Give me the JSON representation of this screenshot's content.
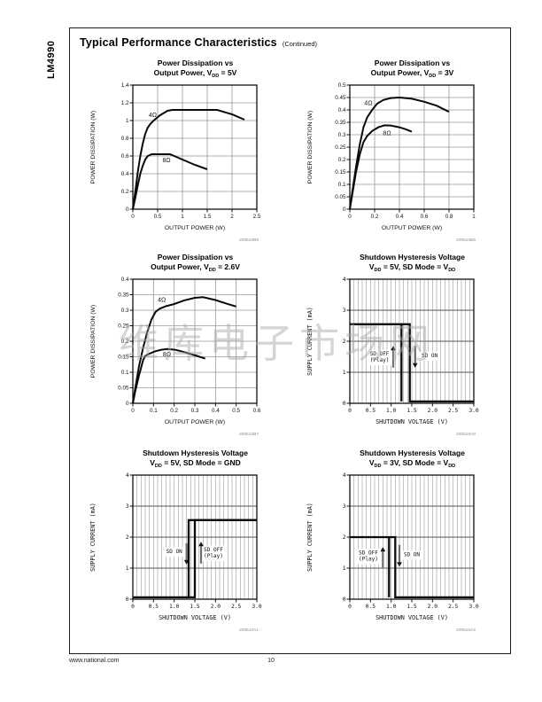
{
  "page": {
    "part_number": "LM4990",
    "header_title": "Typical Performance Characteristics",
    "header_continued": "(Continued)",
    "footer_left": "www.national.com",
    "footer_page": "10",
    "watermark": "维库电子市场网"
  },
  "chart_data": [
    {
      "id": "pd-vdd-5v",
      "type": "line",
      "title_lines": [
        [
          {
            "t": "Power Dissipation vs"
          }
        ],
        [
          {
            "t": "Output Power, V"
          },
          {
            "t": "DD",
            "sub": true
          },
          {
            "t": " = 5V"
          }
        ]
      ],
      "xlabel": "OUTPUT POWER (W)",
      "ylabel": "POWER DISSIPATION (W)",
      "code": "200510B5",
      "mono": false,
      "xlim": [
        0,
        2.5
      ],
      "ylim": [
        0,
        1.4
      ],
      "x_ticks": [
        {
          "v": 0,
          "l": "0"
        },
        {
          "v": 0.5,
          "l": "0.5"
        },
        {
          "v": 1,
          "l": "1"
        },
        {
          "v": 1.5,
          "l": "1.5"
        },
        {
          "v": 2,
          "l": "2"
        },
        {
          "v": 2.5,
          "l": "2.5"
        }
      ],
      "y_ticks": [
        {
          "v": 0,
          "l": "0"
        },
        {
          "v": 0.2,
          "l": "0.2"
        },
        {
          "v": 0.4,
          "l": "0.4"
        },
        {
          "v": 0.6,
          "l": "0.6"
        },
        {
          "v": 0.8,
          "l": "0.8"
        },
        {
          "v": 1,
          "l": "1"
        },
        {
          "v": 1.2,
          "l": "1.2"
        },
        {
          "v": 1.4,
          "l": "1.4"
        }
      ],
      "x_minor": null,
      "series": [
        {
          "name": "4Ω",
          "label_x": 0.4,
          "label_y": 1.04,
          "points": [
            [
              0,
              0
            ],
            [
              0.05,
              0.2
            ],
            [
              0.1,
              0.42
            ],
            [
              0.15,
              0.6
            ],
            [
              0.2,
              0.74
            ],
            [
              0.25,
              0.85
            ],
            [
              0.3,
              0.92
            ],
            [
              0.35,
              0.96
            ],
            [
              0.42,
              1.0
            ],
            [
              0.55,
              1.06
            ],
            [
              0.7,
              1.11
            ],
            [
              0.8,
              1.12
            ],
            [
              1.7,
              1.12
            ],
            [
              2.0,
              1.07
            ],
            [
              2.25,
              1.01
            ]
          ]
        },
        {
          "name": "8Ω",
          "label_x": 0.68,
          "label_y": 0.53,
          "points": [
            [
              0,
              0
            ],
            [
              0.05,
              0.13
            ],
            [
              0.1,
              0.27
            ],
            [
              0.15,
              0.4
            ],
            [
              0.2,
              0.49
            ],
            [
              0.25,
              0.56
            ],
            [
              0.3,
              0.6
            ],
            [
              0.38,
              0.62
            ],
            [
              0.75,
              0.62
            ],
            [
              1.0,
              0.56
            ],
            [
              1.25,
              0.5
            ],
            [
              1.5,
              0.45
            ]
          ]
        }
      ],
      "annotations": [],
      "arrows": []
    },
    {
      "id": "pd-vdd-3v",
      "type": "line",
      "title_lines": [
        [
          {
            "t": "Power Dissipation vs"
          }
        ],
        [
          {
            "t": "Output Power, V"
          },
          {
            "t": "DD",
            "sub": true
          },
          {
            "t": " = 3V"
          }
        ]
      ],
      "xlabel": "OUTPUT POWER (W)",
      "ylabel": "POWER DISSIPATION (W)",
      "code": "200510B6",
      "mono": false,
      "xlim": [
        0,
        1
      ],
      "ylim": [
        0,
        0.5
      ],
      "x_ticks": [
        {
          "v": 0,
          "l": "0"
        },
        {
          "v": 0.2,
          "l": "0.2"
        },
        {
          "v": 0.4,
          "l": "0.4"
        },
        {
          "v": 0.6,
          "l": "0.6"
        },
        {
          "v": 0.8,
          "l": "0.8"
        },
        {
          "v": 1,
          "l": "1"
        }
      ],
      "y_ticks": [
        {
          "v": 0,
          "l": "0"
        },
        {
          "v": 0.05,
          "l": "0.05"
        },
        {
          "v": 0.1,
          "l": "0.1"
        },
        {
          "v": 0.15,
          "l": "0.15"
        },
        {
          "v": 0.2,
          "l": "0.2"
        },
        {
          "v": 0.25,
          "l": "0.25"
        },
        {
          "v": 0.3,
          "l": "0.3"
        },
        {
          "v": 0.35,
          "l": "0.35"
        },
        {
          "v": 0.4,
          "l": "0.4"
        },
        {
          "v": 0.45,
          "l": "0.45"
        },
        {
          "v": 0.5,
          "l": "0.5"
        }
      ],
      "x_minor": null,
      "series": [
        {
          "name": "4Ω",
          "label_x": 0.15,
          "label_y": 0.42,
          "points": [
            [
              0,
              0
            ],
            [
              0.02,
              0.07
            ],
            [
              0.05,
              0.17
            ],
            [
              0.08,
              0.26
            ],
            [
              0.11,
              0.33
            ],
            [
              0.14,
              0.37
            ],
            [
              0.18,
              0.4
            ],
            [
              0.22,
              0.425
            ],
            [
              0.27,
              0.44
            ],
            [
              0.33,
              0.448
            ],
            [
              0.4,
              0.45
            ],
            [
              0.5,
              0.445
            ],
            [
              0.6,
              0.433
            ],
            [
              0.7,
              0.417
            ],
            [
              0.8,
              0.392
            ]
          ]
        },
        {
          "name": "8Ω",
          "label_x": 0.3,
          "label_y": 0.298,
          "points": [
            [
              0,
              0
            ],
            [
              0.02,
              0.06
            ],
            [
              0.05,
              0.15
            ],
            [
              0.08,
              0.22
            ],
            [
              0.11,
              0.27
            ],
            [
              0.14,
              0.295
            ],
            [
              0.18,
              0.315
            ],
            [
              0.23,
              0.33
            ],
            [
              0.28,
              0.338
            ],
            [
              0.33,
              0.337
            ],
            [
              0.4,
              0.33
            ],
            [
              0.45,
              0.322
            ],
            [
              0.5,
              0.312
            ]
          ]
        }
      ],
      "annotations": [],
      "arrows": []
    },
    {
      "id": "pd-vdd-2p6v",
      "type": "line",
      "title_lines": [
        [
          {
            "t": "Power Dissipation vs"
          }
        ],
        [
          {
            "t": "Output Power, V"
          },
          {
            "t": "DD",
            "sub": true
          },
          {
            "t": " = 2.6V"
          }
        ]
      ],
      "xlabel": "OUTPUT POWER (W)",
      "ylabel": "POWER DISSIPATION (W)",
      "code": "200510B7",
      "mono": false,
      "xlim": [
        0,
        0.6
      ],
      "ylim": [
        0,
        0.4
      ],
      "x_ticks": [
        {
          "v": 0,
          "l": "0"
        },
        {
          "v": 0.1,
          "l": "0.1"
        },
        {
          "v": 0.2,
          "l": "0.2"
        },
        {
          "v": 0.3,
          "l": "0.3"
        },
        {
          "v": 0.4,
          "l": "0.4"
        },
        {
          "v": 0.5,
          "l": "0.5"
        },
        {
          "v": 0.6,
          "l": "0.6"
        }
      ],
      "y_ticks": [
        {
          "v": 0,
          "l": "0"
        },
        {
          "v": 0.05,
          "l": "0.05"
        },
        {
          "v": 0.1,
          "l": "0.1"
        },
        {
          "v": 0.15,
          "l": "0.15"
        },
        {
          "v": 0.2,
          "l": "0.2"
        },
        {
          "v": 0.25,
          "l": "0.25"
        },
        {
          "v": 0.3,
          "l": "0.3"
        },
        {
          "v": 0.35,
          "l": "0.35"
        },
        {
          "v": 0.4,
          "l": "0.4"
        }
      ],
      "x_minor": null,
      "series": [
        {
          "name": "4Ω",
          "label_x": 0.14,
          "label_y": 0.327,
          "points": [
            [
              0,
              0
            ],
            [
              0.012,
              0.05
            ],
            [
              0.03,
              0.12
            ],
            [
              0.05,
              0.18
            ],
            [
              0.07,
              0.23
            ],
            [
              0.09,
              0.27
            ],
            [
              0.11,
              0.295
            ],
            [
              0.13,
              0.305
            ],
            [
              0.16,
              0.313
            ],
            [
              0.2,
              0.32
            ],
            [
              0.25,
              0.332
            ],
            [
              0.3,
              0.34
            ],
            [
              0.34,
              0.342
            ],
            [
              0.4,
              0.333
            ],
            [
              0.45,
              0.322
            ],
            [
              0.5,
              0.312
            ]
          ]
        },
        {
          "name": "8Ω",
          "label_x": 0.165,
          "label_y": 0.152,
          "points": [
            [
              0,
              0
            ],
            [
              0.012,
              0.04
            ],
            [
              0.03,
              0.09
            ],
            [
              0.05,
              0.14
            ],
            [
              0.06,
              0.153
            ],
            [
              0.08,
              0.16
            ],
            [
              0.11,
              0.168
            ],
            [
              0.14,
              0.173
            ],
            [
              0.17,
              0.175
            ],
            [
              0.21,
              0.172
            ],
            [
              0.26,
              0.163
            ],
            [
              0.31,
              0.153
            ],
            [
              0.35,
              0.144
            ]
          ]
        }
      ],
      "annotations": [],
      "arrows": []
    },
    {
      "id": "sd-hyst-5v-vdd",
      "type": "line",
      "title_lines": [
        [
          {
            "t": "Shutdown Hysteresis Voltage"
          }
        ],
        [
          {
            "t": "V"
          },
          {
            "t": "DD",
            "sub": true
          },
          {
            "t": " = 5V, SD Mode = V"
          },
          {
            "t": "DD",
            "sub": true
          }
        ]
      ],
      "xlabel": "SHUTDOWN VOLTAGE (V)",
      "ylabel": "SUPPLY CURRENT (mA)",
      "code": "200510A0",
      "mono": true,
      "xlim": [
        0,
        3
      ],
      "ylim": [
        0,
        4
      ],
      "x_ticks": [
        {
          "v": 0,
          "l": "0"
        },
        {
          "v": 0.5,
          "l": "0.5"
        },
        {
          "v": 1,
          "l": "1.0"
        },
        {
          "v": 1.5,
          "l": "1.5"
        },
        {
          "v": 2,
          "l": "2.0"
        },
        {
          "v": 2.5,
          "l": "2.5"
        },
        {
          "v": 3,
          "l": "3.0"
        }
      ],
      "y_ticks": [
        {
          "v": 0,
          "l": "0"
        },
        {
          "v": 1,
          "l": "1"
        },
        {
          "v": 2,
          "l": "2"
        },
        {
          "v": 3,
          "l": "3"
        },
        {
          "v": 4,
          "l": "4"
        }
      ],
      "x_minor": 0.1,
      "series": [
        {
          "name": null,
          "points": [
            [
              0,
              2.55
            ],
            [
              1.45,
              2.55
            ],
            [
              1.45,
              0.06
            ],
            [
              3,
              0.06
            ]
          ]
        },
        {
          "name": null,
          "points": [
            [
              1.25,
              2.55
            ],
            [
              1.25,
              0.06
            ]
          ]
        }
      ],
      "annotations": [
        {
          "lines": [
            "SD OFF",
            "(Play)"
          ],
          "x": 0.72,
          "y": 1.48
        },
        {
          "lines": [
            "SD ON"
          ],
          "x": 1.93,
          "y": 1.52
        }
      ],
      "arrows": [
        {
          "x": 1.05,
          "from": 1.15,
          "to": 1.85
        },
        {
          "x": 1.58,
          "from": 1.85,
          "to": 1.15
        }
      ]
    },
    {
      "id": "sd-hyst-5v-gnd",
      "type": "line",
      "title_lines": [
        [
          {
            "t": "Shutdown Hysteresis Voltage"
          }
        ],
        [
          {
            "t": "V"
          },
          {
            "t": "DD",
            "sub": true
          },
          {
            "t": " = 5V, SD Mode = GND"
          }
        ]
      ],
      "xlabel": "SHUTDOWN VOLTAGE (V)",
      "ylabel": "SUPPLY CURRENT (mA)",
      "code": "200510A1",
      "mono": true,
      "xlim": [
        0,
        3
      ],
      "ylim": [
        0,
        4
      ],
      "x_ticks": [
        {
          "v": 0,
          "l": "0"
        },
        {
          "v": 0.5,
          "l": "0.5"
        },
        {
          "v": 1,
          "l": "1.0"
        },
        {
          "v": 1.5,
          "l": "1.5"
        },
        {
          "v": 2,
          "l": "2.0"
        },
        {
          "v": 2.5,
          "l": "2.5"
        },
        {
          "v": 3,
          "l": "3.0"
        }
      ],
      "y_ticks": [
        {
          "v": 0,
          "l": "0"
        },
        {
          "v": 1,
          "l": "1"
        },
        {
          "v": 2,
          "l": "2"
        },
        {
          "v": 3,
          "l": "3"
        },
        {
          "v": 4,
          "l": "4"
        }
      ],
      "x_minor": 0.1,
      "series": [
        {
          "name": null,
          "points": [
            [
              0,
              0.06
            ],
            [
              1.5,
              0.06
            ],
            [
              1.5,
              2.55
            ],
            [
              3,
              2.55
            ]
          ]
        },
        {
          "name": null,
          "points": [
            [
              1.35,
              0.06
            ],
            [
              1.35,
              2.55
            ],
            [
              3,
              2.55
            ]
          ]
        }
      ],
      "annotations": [
        {
          "lines": [
            "SD ON"
          ],
          "x": 1.0,
          "y": 1.52
        },
        {
          "lines": [
            "SD OFF",
            "(Play)"
          ],
          "x": 1.95,
          "y": 1.48
        }
      ],
      "arrows": [
        {
          "x": 1.3,
          "from": 1.8,
          "to": 1.12
        },
        {
          "x": 1.65,
          "from": 1.15,
          "to": 1.85
        }
      ]
    },
    {
      "id": "sd-hyst-3v-vdd",
      "type": "line",
      "title_lines": [
        [
          {
            "t": "Shutdown Hysteresis Voltage"
          }
        ],
        [
          {
            "t": "V"
          },
          {
            "t": "DD",
            "sub": true
          },
          {
            "t": " = 3V, SD Mode = V"
          },
          {
            "t": "DD",
            "sub": true
          }
        ]
      ],
      "xlabel": "SHUTDOWN VOLTAGE (V)",
      "ylabel": "SUPPLY CURRENT (mA)",
      "code": "200510A2",
      "mono": true,
      "xlim": [
        0,
        3
      ],
      "ylim": [
        0,
        4
      ],
      "x_ticks": [
        {
          "v": 0,
          "l": "0"
        },
        {
          "v": 0.5,
          "l": "0.5"
        },
        {
          "v": 1,
          "l": "1.0"
        },
        {
          "v": 1.5,
          "l": "1.5"
        },
        {
          "v": 2,
          "l": "2.0"
        },
        {
          "v": 2.5,
          "l": "2.5"
        },
        {
          "v": 3,
          "l": "3.0"
        }
      ],
      "y_ticks": [
        {
          "v": 0,
          "l": "0"
        },
        {
          "v": 1,
          "l": "1"
        },
        {
          "v": 2,
          "l": "2"
        },
        {
          "v": 3,
          "l": "3"
        },
        {
          "v": 4,
          "l": "4"
        }
      ],
      "x_minor": 0.1,
      "series": [
        {
          "name": null,
          "points": [
            [
              0,
              2.0
            ],
            [
              1.1,
              2.0
            ],
            [
              1.1,
              0.06
            ],
            [
              3,
              0.06
            ]
          ]
        },
        {
          "name": null,
          "points": [
            [
              0.95,
              2.0
            ],
            [
              0.95,
              0.06
            ]
          ]
        }
      ],
      "annotations": [
        {
          "lines": [
            "SD OFF",
            "(Play)"
          ],
          "x": 0.45,
          "y": 1.38
        },
        {
          "lines": [
            "SD ON"
          ],
          "x": 1.5,
          "y": 1.42
        }
      ],
      "arrows": [
        {
          "x": 0.8,
          "from": 1.0,
          "to": 1.68
        },
        {
          "x": 1.2,
          "from": 1.75,
          "to": 1.05
        }
      ]
    }
  ]
}
